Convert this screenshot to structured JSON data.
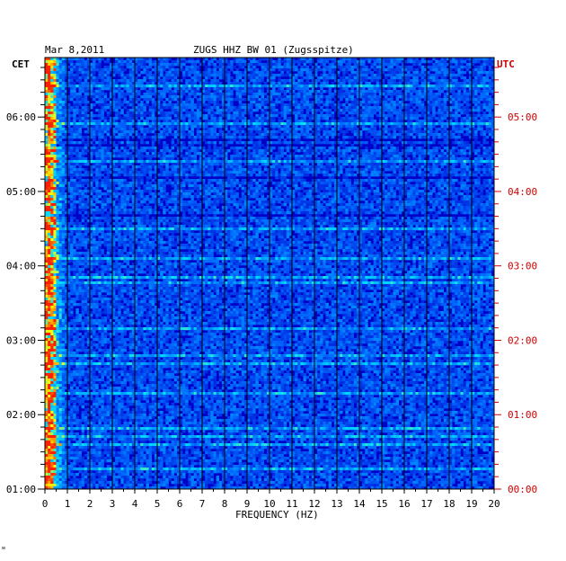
{
  "chart_data": {
    "type": "heatmap",
    "date": "Mar 8,2011",
    "title": "ZUGS HHZ BW 01 (Zugsspitze)",
    "left_tz": "CET",
    "right_tz": "UTC",
    "xlabel": "FREQUENCY (HZ)",
    "xlim": [
      0,
      20
    ],
    "x_ticks": [
      "0",
      "1",
      "2",
      "3",
      "4",
      "5",
      "6",
      "7",
      "8",
      "9",
      "10",
      "11",
      "12",
      "13",
      "14",
      "15",
      "16",
      "17",
      "18",
      "19",
      "20"
    ],
    "left_hour_labels": [
      "06:00",
      "05:00",
      "04:00",
      "03:00",
      "02:00",
      "01:00"
    ],
    "right_hour_labels": [
      "05:00",
      "04:00",
      "03:00",
      "02:00",
      "01:00",
      "00:00"
    ],
    "hour_values": [
      6,
      5,
      4,
      3,
      2,
      1
    ],
    "time_range_cet_hours": [
      1,
      6.8
    ],
    "colors": {
      "background": "#0000c8",
      "low": "#0010d8",
      "mid": "#0080ff",
      "high": "#00e0ff",
      "hot": "#ffff00",
      "peak": "#ff2000",
      "utc_label": "#cc0000"
    }
  },
  "corner_mark": "ᴍ"
}
